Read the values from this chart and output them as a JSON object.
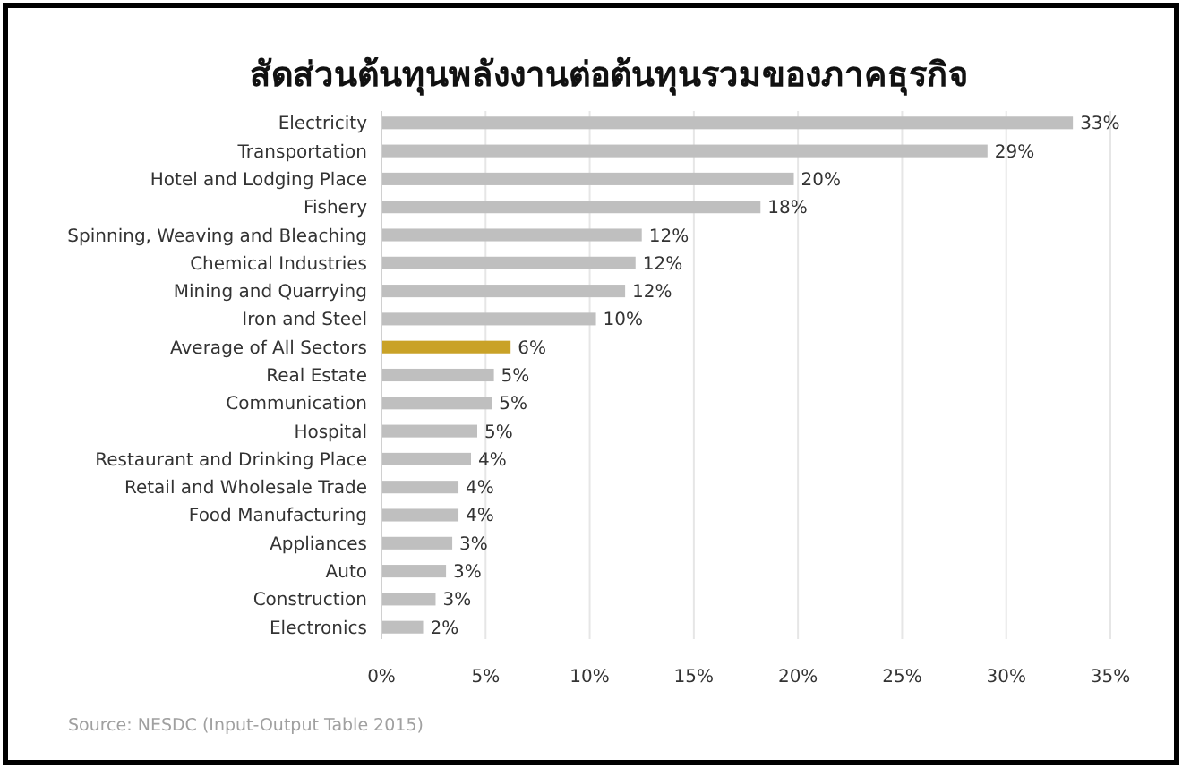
{
  "chart_data": {
    "type": "bar",
    "orientation": "horizontal",
    "title": "สัดส่วนต้นทุนพลังงานต่อต้นทุนรวมของภาคธุรกิจ",
    "categories": [
      "Electricity",
      "Transportation",
      "Hotel and Lodging Place",
      "Fishery",
      "Spinning, Weaving and Bleaching",
      "Chemical Industries",
      "Mining and Quarrying",
      "Iron and Steel",
      "Average of All Sectors",
      "Real Estate",
      "Communication",
      "Hospital",
      "Restaurant and Drinking Place",
      "Retail and Wholesale Trade",
      "Food Manufacturing",
      "Appliances",
      "Auto",
      "Construction",
      "Electronics"
    ],
    "values": [
      33.2,
      29.1,
      19.8,
      18.2,
      12.5,
      12.2,
      11.7,
      10.3,
      6.2,
      5.4,
      5.3,
      4.6,
      4.3,
      3.7,
      3.7,
      3.4,
      3.1,
      2.6,
      2.0
    ],
    "value_labels": [
      "33%",
      "29%",
      "20%",
      "18%",
      "12%",
      "12%",
      "12%",
      "10%",
      "6%",
      "5%",
      "5%",
      "5%",
      "4%",
      "4%",
      "4%",
      "3%",
      "3%",
      "3%",
      "2%"
    ],
    "colors": [
      "#bfbfbf",
      "#bfbfbf",
      "#bfbfbf",
      "#bfbfbf",
      "#bfbfbf",
      "#bfbfbf",
      "#bfbfbf",
      "#bfbfbf",
      "#c9a227",
      "#bfbfbf",
      "#bfbfbf",
      "#bfbfbf",
      "#bfbfbf",
      "#bfbfbf",
      "#bfbfbf",
      "#bfbfbf",
      "#bfbfbf",
      "#bfbfbf",
      "#bfbfbf"
    ],
    "xlim": [
      0,
      35
    ],
    "xticks": [
      {
        "value": 0,
        "label": "0%"
      },
      {
        "value": 5,
        "label": "5%"
      },
      {
        "value": 10,
        "label": "10%"
      },
      {
        "value": 15,
        "label": "15%"
      },
      {
        "value": 20,
        "label": "20%"
      },
      {
        "value": 25,
        "label": "25%"
      },
      {
        "value": 30,
        "label": "30%"
      },
      {
        "value": 35,
        "label": "35%"
      }
    ],
    "grid": "x",
    "annotations": [
      "Source: NESDC (Input-Output Table 2015)"
    ]
  }
}
